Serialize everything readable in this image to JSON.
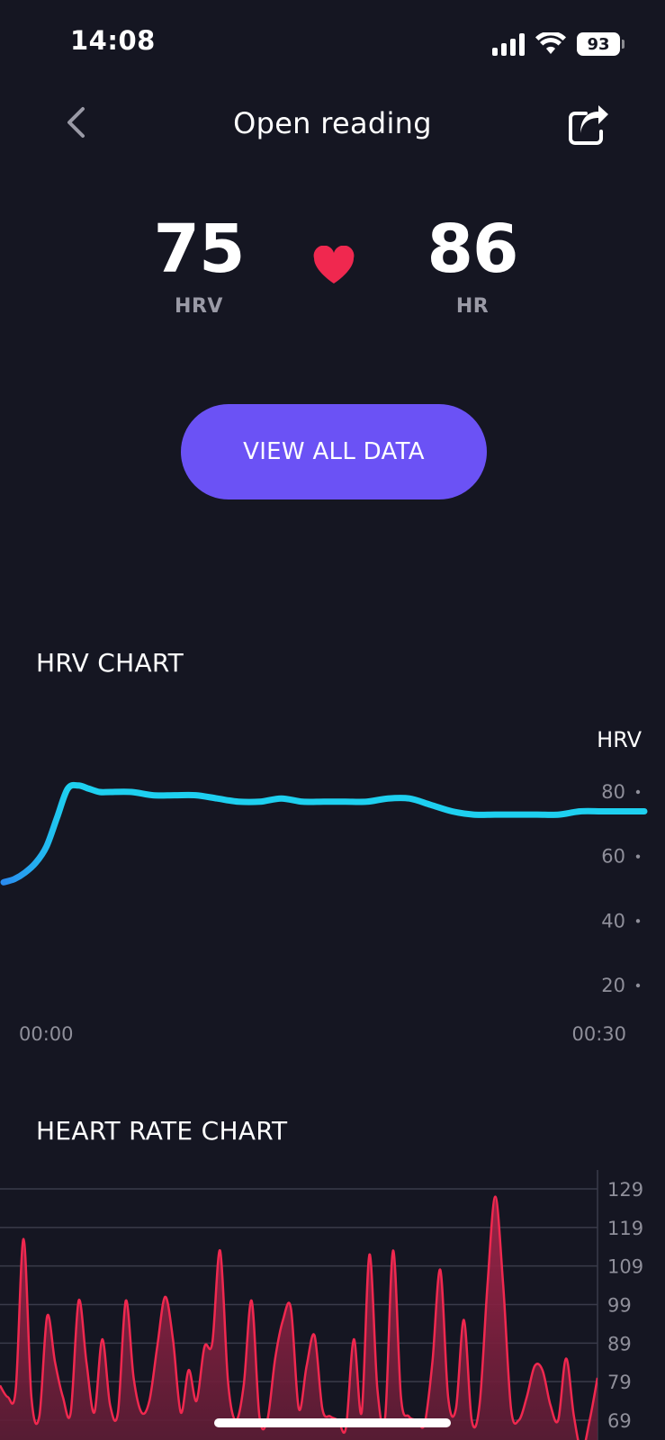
{
  "status_bar": {
    "time": "14:08",
    "battery": "93"
  },
  "nav": {
    "title": "Open reading",
    "back_icon": "chevron-left-icon",
    "share_icon": "share-icon"
  },
  "metrics": {
    "hrv": {
      "value": "75",
      "label": "HRV"
    },
    "hr": {
      "value": "86",
      "label": "HR"
    },
    "heart_icon": "heart-icon",
    "heart_color": "#f0284f"
  },
  "view_all_button": {
    "label": "VIEW ALL DATA",
    "color": "#6b52f5"
  },
  "hrv_section": {
    "title": "HRV CHART"
  },
  "hr_section": {
    "title": "HEART RATE CHART"
  },
  "chart_data": [
    {
      "type": "line",
      "title": "HRV CHART",
      "ylabel": "HRV",
      "ylim": [
        20,
        80
      ],
      "yticks": [
        "20",
        "40",
        "60",
        "80"
      ],
      "xticks": [
        "00:00",
        "00:30"
      ],
      "xlim": [
        0,
        30
      ],
      "line_color": "#1ed0f0",
      "series": [
        {
          "x": [
            0,
            0.5,
            1,
            1.5,
            2,
            2.5,
            3,
            3.5,
            4,
            4.5,
            5,
            6,
            7,
            8,
            9,
            10,
            11,
            12,
            13,
            14,
            15,
            16,
            17,
            18,
            19,
            20,
            21,
            22,
            23,
            24,
            25,
            26,
            27,
            28,
            29,
            30
          ],
          "values": [
            52,
            53,
            55,
            58,
            63,
            72,
            81,
            82,
            81,
            80,
            80,
            80,
            79,
            79,
            79,
            78,
            77,
            77,
            78,
            77,
            77,
            77,
            77,
            78,
            78,
            76,
            74,
            73,
            73,
            73,
            73,
            73,
            74,
            74,
            74,
            74
          ]
        }
      ]
    },
    {
      "type": "area",
      "title": "HEART RATE CHART",
      "ylim": [
        69,
        129
      ],
      "yticks": [
        "69",
        "79",
        "89",
        "99",
        "109",
        "119",
        "129"
      ],
      "line_color": "#f0284f",
      "fill_color": "#5a1c34",
      "series": [
        {
          "values": [
            78,
            75,
            77,
            116,
            75,
            70,
            96,
            84,
            75,
            71,
            100,
            84,
            71,
            90,
            73,
            71,
            100,
            80,
            71,
            74,
            88,
            101,
            90,
            71,
            82,
            74,
            88,
            89,
            113,
            79,
            69,
            78,
            100,
            70,
            69,
            85,
            95,
            98,
            72,
            83,
            91,
            72,
            70,
            69,
            67,
            90,
            71,
            112,
            77,
            70,
            113,
            75,
            70,
            69,
            68,
            84,
            108,
            75,
            72,
            95,
            69,
            73,
            104,
            127,
            104,
            72,
            69,
            75,
            83,
            82,
            73,
            69,
            85,
            70,
            61,
            69,
            80
          ]
        }
      ]
    }
  ]
}
